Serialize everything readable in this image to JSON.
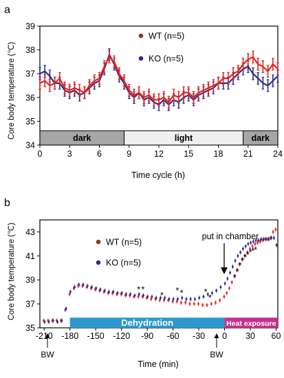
{
  "colors": {
    "wt": "#e0261f",
    "ko": "#2b2f86",
    "dark_bar": "#a6a6a6",
    "light_bar": "#efefef",
    "dehydration_bar": "#2d98cf",
    "heat_bar": "#c4328d",
    "axis": "#000000"
  },
  "chart_data": [
    {
      "panel_label": "a",
      "type": "line",
      "xlabel": "Time cycle (h)",
      "ylabel": "Core body temperature (℃)",
      "xlim": [
        0,
        24
      ],
      "ylim": [
        34,
        39
      ],
      "xticks": [
        "0",
        "3",
        "6",
        "9",
        "12",
        "15",
        "18",
        "21",
        "24"
      ],
      "yticks": [
        "34",
        "35",
        "36",
        "37",
        "38",
        "39"
      ],
      "legend": {
        "position": "top-center",
        "entries": [
          "WT (n=5)",
          "KO (n=5)"
        ]
      },
      "phase_bar": [
        {
          "label": "dark",
          "start": 0,
          "end": 8.5
        },
        {
          "label": "light",
          "start": 8.5,
          "end": 20.5
        },
        {
          "label": "dark",
          "start": 20.5,
          "end": 24
        }
      ],
      "error_bar": 0.25,
      "x": [
        0,
        0.5,
        1,
        1.5,
        2,
        2.5,
        3,
        3.5,
        4,
        4.5,
        5,
        5.5,
        6,
        6.5,
        7,
        7.5,
        8,
        8.5,
        9,
        9.5,
        10,
        10.5,
        11,
        11.5,
        12,
        12.5,
        13,
        13.5,
        14,
        14.5,
        15,
        15.5,
        16,
        16.5,
        17,
        17.5,
        18,
        18.5,
        19,
        19.5,
        20,
        20.5,
        21,
        21.5,
        22,
        22.5,
        23,
        23.5,
        24
      ],
      "series": [
        {
          "name": "WT (n=5)",
          "values": [
            36.6,
            36.7,
            36.5,
            36.6,
            36.8,
            36.4,
            36.3,
            36.4,
            36.3,
            36.2,
            36.5,
            36.7,
            36.8,
            37.3,
            37.7,
            37.5,
            37.0,
            36.7,
            36.3,
            36.1,
            36.2,
            36.0,
            36.1,
            35.9,
            35.9,
            36.0,
            35.8,
            36.1,
            36.0,
            36.2,
            36.2,
            36.0,
            36.2,
            36.3,
            36.4,
            36.5,
            36.6,
            36.8,
            36.8,
            37.0,
            37.1,
            37.4,
            37.6,
            37.7,
            37.4,
            37.3,
            37.1,
            37.4,
            37.2
          ]
        },
        {
          "name": "KO (n=5)",
          "values": [
            37.0,
            37.1,
            36.9,
            36.6,
            36.6,
            36.3,
            36.2,
            36.3,
            36.1,
            36.2,
            36.4,
            36.6,
            36.7,
            37.2,
            37.8,
            37.4,
            36.9,
            36.6,
            36.2,
            36.0,
            36.2,
            35.9,
            36.0,
            35.8,
            35.7,
            35.9,
            35.7,
            35.9,
            35.8,
            36.0,
            36.1,
            35.9,
            36.1,
            36.2,
            36.3,
            36.4,
            36.6,
            36.6,
            36.6,
            36.8,
            37.0,
            37.2,
            37.3,
            37.0,
            36.8,
            36.6,
            36.5,
            36.7,
            36.9
          ]
        }
      ]
    },
    {
      "panel_label": "b",
      "type": "scatter",
      "xlabel": "Time (min)",
      "ylabel": "Core body temperature (℃)",
      "xlim": [
        -215,
        62
      ],
      "ylim": [
        35,
        44
      ],
      "xticks": [
        "-210",
        "-180",
        "-150",
        "-120",
        "-90",
        "-60",
        "-30",
        "0",
        "30",
        "60"
      ],
      "yticks": [
        "35",
        "37",
        "39",
        "41",
        "43"
      ],
      "legend": {
        "position": "center-left",
        "entries": [
          "WT (n=5)",
          "KO (n=5)"
        ]
      },
      "phase_bar": [
        {
          "label": "Dehydration",
          "start": -180,
          "end": 0
        },
        {
          "label": "Heat exposure",
          "start": 0,
          "end": 62
        }
      ],
      "annotations": [
        {
          "text": "put in chamber",
          "x": 0,
          "arrow": "down"
        },
        {
          "text": "BW",
          "x": -210,
          "arrow": "up"
        },
        {
          "text": "BW",
          "x": -5,
          "arrow": "up"
        }
      ],
      "significance": [
        {
          "label": "*",
          "x": -100,
          "y": 38.3
        },
        {
          "label": "*",
          "x": -95,
          "y": 38.3
        },
        {
          "label": "*",
          "x": -73,
          "y": 37.8
        },
        {
          "label": "*",
          "x": -55,
          "y": 38.2
        },
        {
          "label": "*",
          "x": -50,
          "y": 38.0
        },
        {
          "label": "*",
          "x": -22,
          "y": 38.1
        },
        {
          "label": "*",
          "x": -17,
          "y": 37.6
        },
        {
          "label": "*",
          "x": 12,
          "y": 39.3
        },
        {
          "label": "*",
          "x": 15,
          "y": 39.8
        },
        {
          "label": "*",
          "x": 18,
          "y": 40.3
        },
        {
          "label": "*",
          "x": 21,
          "y": 40.7
        },
        {
          "label": "*",
          "x": 24,
          "y": 41.0
        },
        {
          "label": "*",
          "x": 27,
          "y": 41.2
        },
        {
          "label": "*",
          "x": 30,
          "y": 41.4
        },
        {
          "label": "*",
          "x": 33,
          "y": 41.5
        },
        {
          "label": "*",
          "x": 36,
          "y": 41.6
        }
      ],
      "x": [
        -210,
        -205,
        -200,
        -195,
        -190,
        -185,
        -180,
        -175,
        -170,
        -165,
        -160,
        -155,
        -150,
        -145,
        -140,
        -135,
        -130,
        -125,
        -120,
        -115,
        -110,
        -105,
        -100,
        -95,
        -90,
        -85,
        -80,
        -75,
        -70,
        -65,
        -60,
        -55,
        -50,
        -45,
        -40,
        -35,
        -30,
        -25,
        -20,
        -15,
        -10,
        -5,
        0,
        3,
        6,
        9,
        12,
        15,
        18,
        21,
        24,
        27,
        30,
        33,
        36,
        39,
        42,
        45,
        48,
        51,
        54,
        57,
        60
      ],
      "series": [
        {
          "name": "WT (n=5)",
          "values": [
            35.6,
            35.6,
            35.6,
            35.6,
            35.6,
            36.5,
            37.8,
            38.3,
            38.5,
            38.5,
            38.4,
            38.3,
            38.2,
            38.1,
            38.0,
            37.9,
            37.9,
            37.8,
            37.8,
            37.7,
            37.7,
            37.6,
            37.6,
            37.6,
            37.5,
            37.4,
            37.4,
            37.3,
            37.3,
            37.3,
            37.2,
            37.2,
            37.1,
            37.1,
            37.0,
            37.0,
            37.0,
            36.9,
            36.9,
            37.0,
            37.1,
            37.3,
            37.6,
            37.9,
            38.3,
            38.8,
            39.3,
            39.8,
            40.3,
            40.7,
            41.0,
            41.3,
            41.6,
            41.8,
            42.0,
            42.1,
            42.2,
            42.3,
            42.4,
            42.4,
            42.5,
            43.0,
            43.2
          ]
        },
        {
          "name": "KO (n=5)",
          "values": [
            35.5,
            35.5,
            35.6,
            35.5,
            35.6,
            36.6,
            38.0,
            38.4,
            38.6,
            38.6,
            38.5,
            38.4,
            38.3,
            38.2,
            38.1,
            38.0,
            38.0,
            37.9,
            37.9,
            37.8,
            37.8,
            37.7,
            37.8,
            37.7,
            37.6,
            37.6,
            37.5,
            37.5,
            37.5,
            37.4,
            37.4,
            37.4,
            37.5,
            37.4,
            37.4,
            37.4,
            37.5,
            37.6,
            37.8,
            37.9,
            38.1,
            38.4,
            38.7,
            39.1,
            39.6,
            40.1,
            40.6,
            41.0,
            41.3,
            41.6,
            41.8,
            42.0,
            42.1,
            42.2,
            42.3,
            42.3,
            42.4,
            42.4,
            42.4,
            42.4,
            42.5,
            42.5,
            41.9
          ]
        }
      ]
    }
  ]
}
